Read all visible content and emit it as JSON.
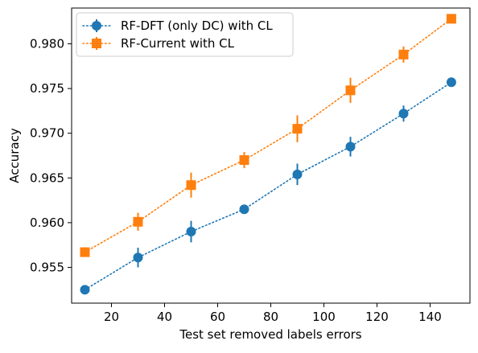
{
  "chart_data": {
    "type": "line",
    "xlabel": "Test set removed labels errors",
    "ylabel": "Accuracy",
    "xlim": [
      5,
      155
    ],
    "ylim": [
      0.951,
      0.984
    ],
    "xticks": [
      20,
      40,
      60,
      80,
      100,
      120,
      140
    ],
    "xtick_labels": [
      "20",
      "40",
      "60",
      "80",
      "100",
      "120",
      "140"
    ],
    "yticks": [
      0.955,
      0.96,
      0.965,
      0.97,
      0.975,
      0.98
    ],
    "ytick_labels": [
      "0.955",
      "0.960",
      "0.965",
      "0.970",
      "0.975",
      "0.980"
    ],
    "grid": false,
    "legend_position": "top-left",
    "series": [
      {
        "name": "RF-DFT (only DC) with CL",
        "color": "#1f77b4",
        "marker": "circle",
        "linestyle": "dotted",
        "x": [
          10,
          30,
          50,
          70,
          90,
          110,
          130,
          148
        ],
        "y": [
          0.9525,
          0.9561,
          0.959,
          0.9615,
          0.9654,
          0.9685,
          0.9722,
          0.9757
        ],
        "err": [
          0.0002,
          0.0011,
          0.0012,
          0.0004,
          0.0012,
          0.0011,
          0.0009,
          0.0002
        ]
      },
      {
        "name": "RF-Current with CL",
        "color": "#ff7f0e",
        "marker": "square",
        "linestyle": "dotted",
        "x": [
          10,
          30,
          50,
          70,
          90,
          110,
          130,
          148
        ],
        "y": [
          0.9567,
          0.9601,
          0.9642,
          0.967,
          0.9705,
          0.9748,
          0.9788,
          0.9828
        ],
        "err": [
          0.0002,
          0.001,
          0.0014,
          0.0009,
          0.0015,
          0.0014,
          0.0009,
          0.0003
        ]
      }
    ]
  }
}
